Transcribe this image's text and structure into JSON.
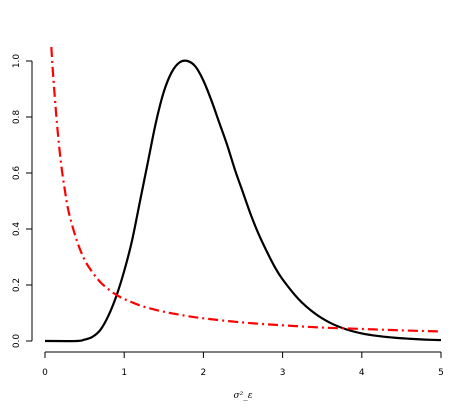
{
  "chart_data": {
    "type": "line",
    "title": "",
    "xlabel": "σ²_ε",
    "ylabel": "",
    "xlim": [
      0,
      5
    ],
    "ylim": [
      0,
      1.0
    ],
    "x_ticks": [
      "0",
      "1",
      "2",
      "3",
      "4",
      "5"
    ],
    "y_ticks": [
      "0.0",
      "0.2",
      "0.4",
      "0.6",
      "0.8",
      "1.0"
    ],
    "grid": false,
    "legend": "none",
    "series": [
      {
        "style": "solid",
        "color": "#000000",
        "x": [
          0.0,
          0.4,
          0.5,
          0.6,
          0.7,
          0.8,
          0.9,
          1.0,
          1.1,
          1.2,
          1.3,
          1.4,
          1.5,
          1.6,
          1.7,
          1.8,
          1.9,
          2.0,
          2.1,
          2.2,
          2.3,
          2.4,
          2.5,
          2.6,
          2.7,
          2.8,
          2.9,
          3.0,
          3.2,
          3.4,
          3.6,
          3.8,
          4.0,
          4.2,
          4.4,
          4.6,
          4.8,
          5.0
        ],
        "values": [
          0.0,
          0.0,
          0.005,
          0.015,
          0.04,
          0.09,
          0.16,
          0.25,
          0.36,
          0.5,
          0.64,
          0.78,
          0.89,
          0.96,
          0.995,
          1.0,
          0.98,
          0.93,
          0.86,
          0.78,
          0.7,
          0.61,
          0.53,
          0.45,
          0.38,
          0.32,
          0.265,
          0.22,
          0.15,
          0.1,
          0.065,
          0.042,
          0.027,
          0.018,
          0.012,
          0.008,
          0.005,
          0.003
        ]
      },
      {
        "style": "dashdot",
        "color": "#ff0000",
        "x": [
          0.08,
          0.1,
          0.15,
          0.2,
          0.25,
          0.3,
          0.4,
          0.5,
          0.6,
          0.7,
          0.8,
          0.9,
          1.0,
          1.2,
          1.4,
          1.6,
          1.8,
          2.0,
          2.5,
          3.0,
          3.5,
          4.0,
          4.5,
          5.0
        ],
        "values": [
          1.05,
          0.96,
          0.78,
          0.64,
          0.54,
          0.46,
          0.36,
          0.29,
          0.245,
          0.21,
          0.185,
          0.165,
          0.15,
          0.127,
          0.111,
          0.099,
          0.089,
          0.081,
          0.066,
          0.056,
          0.048,
          0.043,
          0.038,
          0.034
        ]
      }
    ]
  }
}
